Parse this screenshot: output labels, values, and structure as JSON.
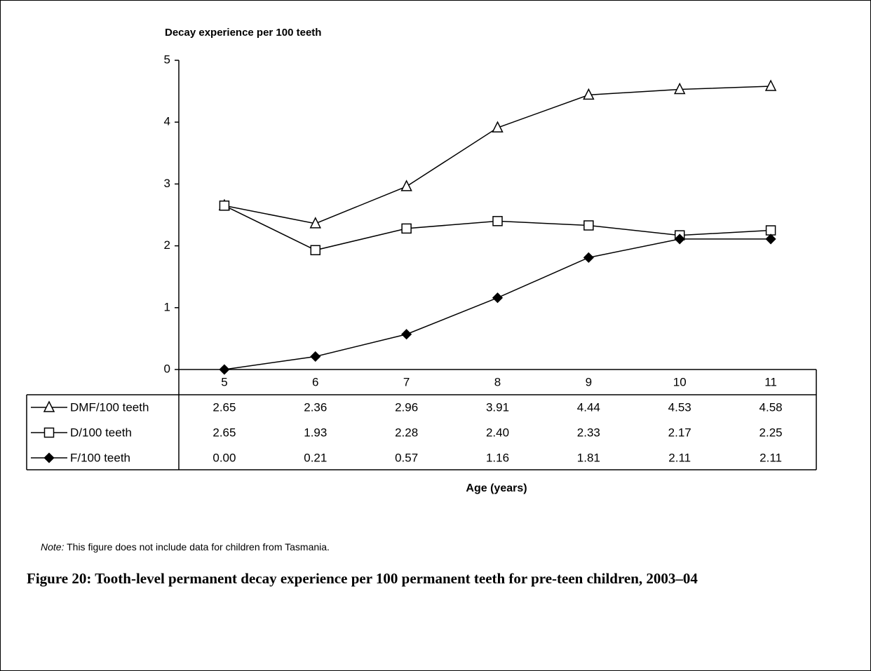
{
  "chart_data": {
    "type": "line",
    "ylabel": "Decay experience per 100 teeth",
    "xlabel": "Age (years)",
    "categories": [
      "5",
      "6",
      "7",
      "8",
      "9",
      "10",
      "11"
    ],
    "ylim": [
      0,
      5
    ],
    "yticks": [
      0,
      1,
      2,
      3,
      4,
      5
    ],
    "grid": false,
    "series": [
      {
        "name": "DMF/100 teeth",
        "color": "#000000",
        "marker": "triangle",
        "marker_fill": "#ffffff",
        "values": [
          2.65,
          2.36,
          2.96,
          3.91,
          4.44,
          4.53,
          4.58
        ],
        "value_labels": [
          "2.65",
          "2.36",
          "2.96",
          "3.91",
          "4.44",
          "4.53",
          "4.58"
        ]
      },
      {
        "name": "D/100 teeth",
        "color": "#000000",
        "marker": "square",
        "marker_fill": "#ffffff",
        "values": [
          2.65,
          1.93,
          2.28,
          2.4,
          2.33,
          2.17,
          2.25
        ],
        "value_labels": [
          "2.65",
          "1.93",
          "2.28",
          "2.40",
          "2.33",
          "2.17",
          "2.25"
        ]
      },
      {
        "name": "F/100 teeth",
        "color": "#000000",
        "marker": "diamond",
        "marker_fill": "#000000",
        "values": [
          0,
          0.21,
          0.57,
          1.16,
          1.81,
          2.11,
          2.11
        ],
        "value_labels": [
          "0.00",
          "0.21",
          "0.57",
          "1.16",
          "1.81",
          "2.11",
          "2.11"
        ]
      }
    ]
  },
  "note": {
    "label": "Note:",
    "text": "This figure does not include data for children from Tasmania."
  },
  "caption": "Figure 20: Tooth-level permanent decay experience per 100 permanent teeth for pre-teen children, 2003–04"
}
